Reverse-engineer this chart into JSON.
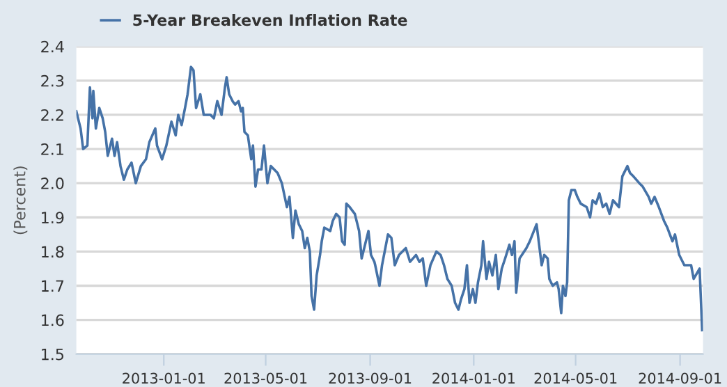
{
  "chart_data": {
    "type": "line",
    "ylabel": "(Percent)",
    "legend": "top left",
    "grid": "y",
    "xlim": [
      "2012-09-20",
      "2014-09-28"
    ],
    "ylim": [
      1.5,
      2.4
    ],
    "xticks": [
      "2013-01-01",
      "2013-05-01",
      "2013-09-01",
      "2014-01-01",
      "2014-05-01",
      "2014-09-01"
    ],
    "yticks": [
      1.5,
      1.6,
      1.7,
      1.8,
      1.9,
      {
        "value": 2,
        "label": "2.0"
      },
      2.1,
      2.2,
      2.3,
      2.4
    ],
    "x": [
      "2012-09-20",
      "2012-09-25",
      "2012-09-28",
      "2012-10-03",
      "2012-10-06",
      "2012-10-09",
      "2012-10-10",
      "2012-10-13",
      "2012-10-17",
      "2012-10-21",
      "2012-10-24",
      "2012-10-27",
      "2012-11-01",
      "2012-11-04",
      "2012-11-07",
      "2012-11-11",
      "2012-11-15",
      "2012-11-19",
      "2012-11-24",
      "2012-11-29",
      "2012-12-05",
      "2012-12-11",
      "2012-12-15",
      "2012-12-22",
      "2012-12-24",
      "2012-12-30",
      "2013-01-04",
      "2013-01-10",
      "2013-01-15",
      "2013-01-18",
      "2013-01-22",
      "2013-01-26",
      "2013-01-29",
      "2013-02-02",
      "2013-02-05",
      "2013-02-08",
      "2013-02-13",
      "2013-02-17",
      "2013-02-25",
      "2013-03-01",
      "2013-03-05",
      "2013-03-10",
      "2013-03-14",
      "2013-03-16",
      "2013-03-19",
      "2013-03-23",
      "2013-03-26",
      "2013-03-30",
      "2013-04-02",
      "2013-04-04",
      "2013-04-06",
      "2013-04-10",
      "2013-04-14",
      "2013-04-16",
      "2013-04-19",
      "2013-04-22",
      "2013-04-26",
      "2013-04-29",
      "2013-05-03",
      "2013-05-07",
      "2013-05-11",
      "2013-05-15",
      "2013-05-20",
      "2013-05-26",
      "2013-05-29",
      "2013-06-02",
      "2013-06-05",
      "2013-06-09",
      "2013-06-13",
      "2013-06-16",
      "2013-06-19",
      "2013-06-22",
      "2013-06-24",
      "2013-06-27",
      "2013-06-30",
      "2013-07-04",
      "2013-07-06",
      "2013-07-09",
      "2013-07-16",
      "2013-07-19",
      "2013-07-23",
      "2013-07-27",
      "2013-07-30",
      "2013-08-02",
      "2013-08-04",
      "2013-08-08",
      "2013-08-14",
      "2013-08-19",
      "2013-08-22",
      "2013-08-25",
      "2013-08-27",
      "2013-08-30",
      "2013-09-02",
      "2013-09-06",
      "2013-09-07",
      "2013-09-12",
      "2013-09-15",
      "2013-09-22",
      "2013-09-26",
      "2013-09-30",
      "2013-10-05",
      "2013-10-13",
      "2013-10-18",
      "2013-10-25",
      "2013-10-29",
      "2013-11-02",
      "2013-11-06",
      "2013-11-11",
      "2013-11-18",
      "2013-11-23",
      "2013-11-27",
      "2013-12-01",
      "2013-12-06",
      "2013-12-10",
      "2013-12-14",
      "2013-12-17",
      "2013-12-21",
      "2013-12-24",
      "2013-12-27",
      "2013-12-31",
      "2014-01-03",
      "2014-01-06",
      "2014-01-10",
      "2014-01-12",
      "2014-01-16",
      "2014-01-19",
      "2014-01-23",
      "2014-01-27",
      "2014-01-30",
      "2014-02-03",
      "2014-02-07",
      "2014-02-12",
      "2014-02-15",
      "2014-02-18",
      "2014-02-20",
      "2014-02-24",
      "2014-03-04",
      "2014-03-08",
      "2014-03-16",
      "2014-03-19",
      "2014-03-22",
      "2014-03-25",
      "2014-03-29",
      "2014-03-31",
      "2014-04-04",
      "2014-04-09",
      "2014-04-11",
      "2014-04-14",
      "2014-04-16",
      "2014-04-19",
      "2014-04-21",
      "2014-04-23",
      "2014-04-26",
      "2014-04-30",
      "2014-05-03",
      "2014-05-07",
      "2014-05-14",
      "2014-05-18",
      "2014-05-21",
      "2014-05-25",
      "2014-05-29",
      "2014-06-02",
      "2014-06-06",
      "2014-06-10",
      "2014-06-14",
      "2014-06-21",
      "2014-06-25",
      "2014-07-01",
      "2014-07-04",
      "2014-07-08",
      "2014-07-15",
      "2014-07-19",
      "2014-07-26",
      "2014-07-29",
      "2014-08-02",
      "2014-08-07",
      "2014-08-13",
      "2014-08-17",
      "2014-08-23",
      "2014-08-26",
      "2014-08-31",
      "2014-09-06",
      "2014-09-14",
      "2014-09-17",
      "2014-09-24",
      "2014-09-27"
    ],
    "series": [
      {
        "name": "5-Year Breakeven Inflation Rate",
        "color": "#4572a7",
        "values": [
          2.21,
          2.16,
          2.1,
          2.11,
          2.28,
          2.19,
          2.27,
          2.16,
          2.22,
          2.19,
          2.15,
          2.08,
          2.13,
          2.08,
          2.12,
          2.05,
          2.01,
          2.04,
          2.06,
          2.0,
          2.05,
          2.07,
          2.12,
          2.16,
          2.11,
          2.07,
          2.11,
          2.18,
          2.14,
          2.2,
          2.17,
          2.22,
          2.26,
          2.34,
          2.33,
          2.22,
          2.26,
          2.2,
          2.2,
          2.19,
          2.24,
          2.2,
          2.28,
          2.31,
          2.26,
          2.24,
          2.23,
          2.24,
          2.21,
          2.22,
          2.15,
          2.14,
          2.07,
          2.11,
          1.99,
          2.04,
          2.04,
          2.11,
          2.0,
          2.05,
          2.04,
          2.03,
          2.0,
          1.93,
          1.96,
          1.84,
          1.92,
          1.88,
          1.86,
          1.81,
          1.84,
          1.8,
          1.67,
          1.63,
          1.73,
          1.79,
          1.83,
          1.87,
          1.86,
          1.89,
          1.91,
          1.9,
          1.83,
          1.82,
          1.94,
          1.93,
          1.91,
          1.86,
          1.78,
          1.81,
          1.83,
          1.86,
          1.79,
          1.77,
          1.76,
          1.7,
          1.76,
          1.85,
          1.84,
          1.76,
          1.79,
          1.81,
          1.77,
          1.79,
          1.77,
          1.78,
          1.7,
          1.76,
          1.8,
          1.79,
          1.76,
          1.72,
          1.7,
          1.65,
          1.63,
          1.66,
          1.69,
          1.76,
          1.65,
          1.69,
          1.65,
          1.71,
          1.76,
          1.83,
          1.72,
          1.77,
          1.73,
          1.79,
          1.69,
          1.75,
          1.78,
          1.82,
          1.79,
          1.83,
          1.68,
          1.78,
          1.81,
          1.83,
          1.88,
          1.82,
          1.76,
          1.79,
          1.78,
          1.72,
          1.7,
          1.71,
          1.69,
          1.62,
          1.7,
          1.67,
          1.71,
          1.95,
          1.98,
          1.98,
          1.96,
          1.94,
          1.93,
          1.9,
          1.95,
          1.94,
          1.97,
          1.93,
          1.94,
          1.91,
          1.95,
          1.93,
          2.02,
          2.05,
          2.03,
          2.02,
          2.0,
          1.99,
          1.96,
          1.94,
          1.96,
          1.93,
          1.89,
          1.87,
          1.83,
          1.85,
          1.79,
          1.76,
          1.76,
          1.72,
          1.75,
          1.57
        ]
      }
    ]
  }
}
